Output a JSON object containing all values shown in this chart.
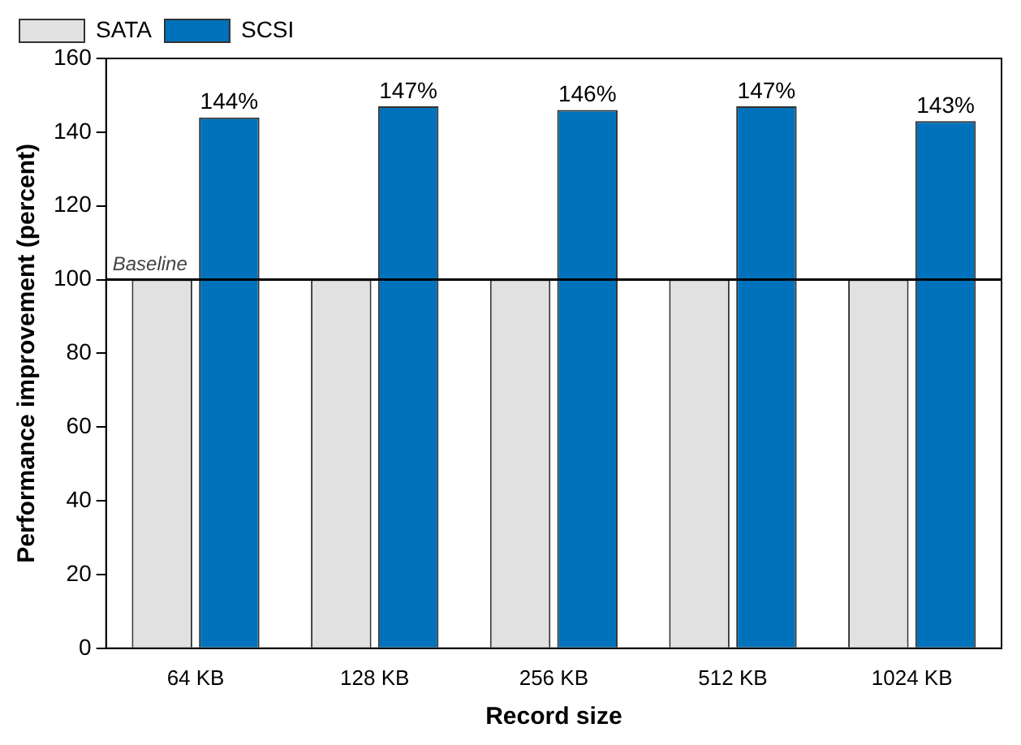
{
  "chart_data": {
    "type": "bar",
    "xlabel": "Record size",
    "ylabel": "Performance improvement (percent)",
    "categories": [
      "64 KB",
      "128 KB",
      "256 KB",
      "512 KB",
      "1024 KB"
    ],
    "series": [
      {
        "name": "SATA",
        "color": "#e1e1e1",
        "values": [
          100,
          100,
          100,
          100,
          100
        ]
      },
      {
        "name": "SCSI",
        "color": "#0072bb",
        "values": [
          144,
          147,
          146,
          147,
          143
        ],
        "value_labels": [
          "144%",
          "147%",
          "146%",
          "147%",
          "143%"
        ]
      }
    ],
    "ylim": [
      0,
      160
    ],
    "yticks": [
      0,
      20,
      40,
      60,
      80,
      100,
      120,
      140,
      160
    ],
    "grid": false,
    "legend": "top left",
    "ref_lines": [
      {
        "axis": "y",
        "value": 100,
        "label": "Baseline"
      }
    ]
  }
}
